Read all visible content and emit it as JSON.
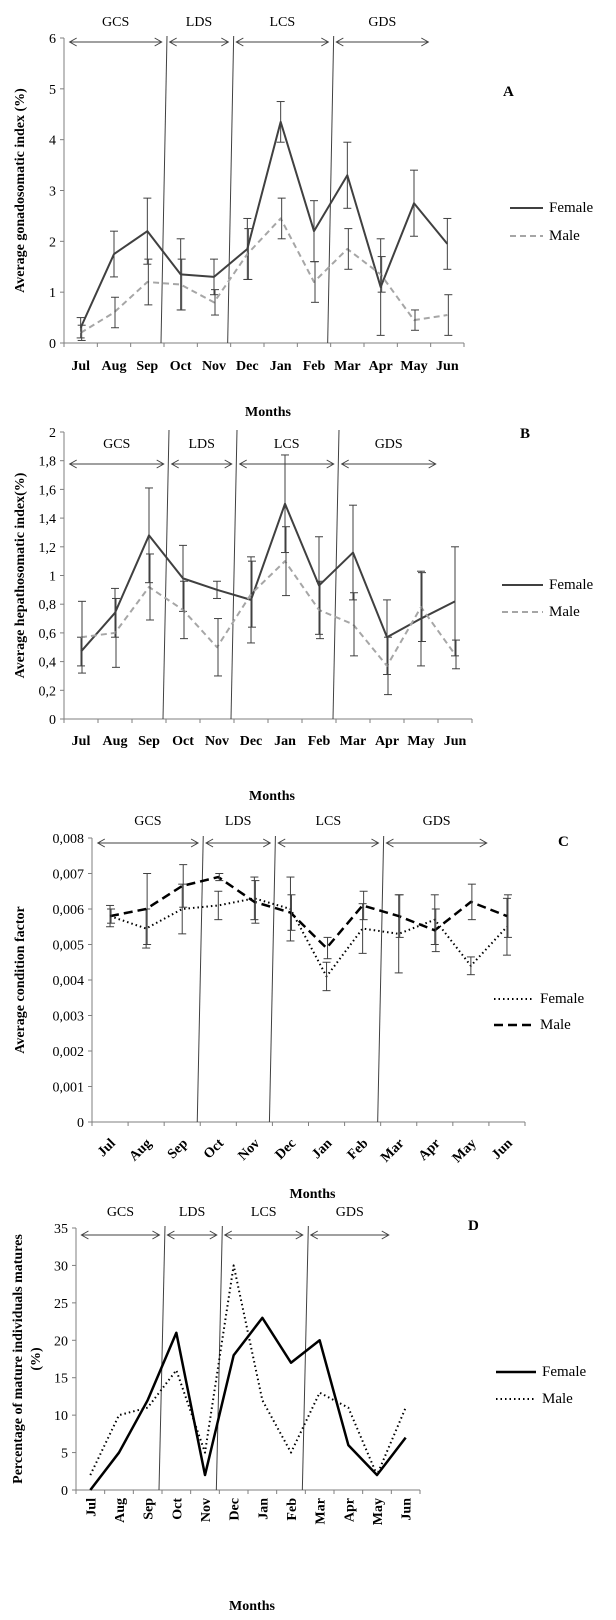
{
  "chart_data": [
    {
      "type": "line",
      "panel_label": "A",
      "categories": [
        "Jul",
        "Aug",
        "Sep",
        "Oct",
        "Nov",
        "Dec",
        "Jan",
        "Feb",
        "Mar",
        "Apr",
        "May",
        "Jun"
      ],
      "ylabel": "Average gonadosomatic index (%)",
      "xlabel": "Months",
      "ylim": [
        0,
        6
      ],
      "yticks": [
        "0",
        "1",
        "2",
        "3",
        "4",
        "5",
        "6"
      ],
      "x_tick_style": "bold-horizontal",
      "seasons": [
        {
          "label": "GCS",
          "from": 0,
          "to": 3
        },
        {
          "label": "LDS",
          "from": 3,
          "to": 5
        },
        {
          "label": "LCS",
          "from": 5,
          "to": 8
        },
        {
          "label": "GDS",
          "from": 8,
          "to": 11
        }
      ],
      "season_dividers": [
        2.5,
        4.5,
        7.5
      ],
      "legend_position": "right",
      "series": [
        {
          "name": "Female",
          "style": "solid",
          "color": "#404040",
          "values": [
            0.3,
            1.75,
            2.2,
            1.35,
            1.3,
            1.85,
            4.35,
            2.2,
            3.3,
            1.1,
            2.75,
            1.95
          ],
          "errors": [
            0.2,
            0.45,
            0.65,
            0.7,
            0.35,
            0.6,
            0.4,
            0.6,
            0.65,
            0.95,
            0.65,
            0.5
          ]
        },
        {
          "name": "Male",
          "style": "dashed",
          "color": "#a6a6a6",
          "values": [
            0.2,
            0.6,
            1.2,
            1.15,
            0.8,
            1.75,
            2.45,
            1.2,
            1.85,
            1.35,
            0.45,
            0.55
          ],
          "errors": [
            0.15,
            0.3,
            0.45,
            0.5,
            0.25,
            0.5,
            0.4,
            0.4,
            0.4,
            0.35,
            0.2,
            0.4
          ]
        }
      ]
    },
    {
      "type": "line",
      "panel_label": "B",
      "categories": [
        "Jul",
        "Aug",
        "Sep",
        "Oct",
        "Nov",
        "Dec",
        "Jan",
        "Feb",
        "Mar",
        "Apr",
        "May",
        "Jun"
      ],
      "ylabel": "Average hepathosomatic index(%)",
      "xlabel": "Months",
      "ylim": [
        0,
        2
      ],
      "yticks": [
        "0",
        "0,2",
        "0,4",
        "0,6",
        "0,8",
        "1",
        "1,2",
        "1,4",
        "1,6",
        "1,8",
        "2"
      ],
      "x_tick_style": "bold-horizontal",
      "seasons": [
        {
          "label": "GCS",
          "from": 0,
          "to": 3
        },
        {
          "label": "LDS",
          "from": 3,
          "to": 5
        },
        {
          "label": "LCS",
          "from": 5,
          "to": 8
        },
        {
          "label": "GDS",
          "from": 8,
          "to": 11
        }
      ],
      "season_dividers": [
        2.5,
        4.5,
        7.5
      ],
      "legend_position": "right",
      "series": [
        {
          "name": "Female",
          "style": "solid",
          "color": "#404040",
          "values": [
            0.47,
            0.74,
            1.28,
            0.98,
            0.9,
            0.83,
            1.5,
            0.93,
            1.16,
            0.57,
            0.7,
            0.82
          ],
          "errors": [
            0.1,
            0.17,
            0.33,
            0.23,
            0.06,
            0.3,
            0.34,
            0.34,
            0.33,
            0.26,
            0.33,
            0.38
          ]
        },
        {
          "name": "Male",
          "style": "dashed",
          "color": "#a6a6a6",
          "values": [
            0.57,
            0.6,
            0.92,
            0.76,
            0.5,
            0.87,
            1.1,
            0.76,
            0.66,
            0.37,
            0.78,
            0.45
          ],
          "errors": [
            0.25,
            0.24,
            0.23,
            0.2,
            0.2,
            0.23,
            0.24,
            0.2,
            0.22,
            0.2,
            0.24,
            0.1
          ]
        }
      ]
    },
    {
      "type": "line",
      "panel_label": "C",
      "categories": [
        "Jul",
        "Aug",
        "Sep",
        "Oct",
        "Nov",
        "Dec",
        "Jan",
        "Feb",
        "Mar",
        "Apr",
        "May",
        "Jun"
      ],
      "ylabel": "Average condition factor",
      "xlabel": "Months",
      "ylim": [
        0,
        0.008
      ],
      "yticks": [
        "0",
        "0,001",
        "0,002",
        "0,003",
        "0,004",
        "0,005",
        "0,006",
        "0,007",
        "0,008"
      ],
      "x_tick_style": "bold-rotated",
      "seasons": [
        {
          "label": "GCS",
          "from": 0,
          "to": 3
        },
        {
          "label": "LDS",
          "from": 3,
          "to": 5
        },
        {
          "label": "LCS",
          "from": 5,
          "to": 8
        },
        {
          "label": "GDS",
          "from": 8,
          "to": 11
        }
      ],
      "season_dividers": [
        2.5,
        4.5,
        7.5
      ],
      "legend_position": "right",
      "series": [
        {
          "name": "Female",
          "style": "dotted",
          "color": "#000000",
          "values": [
            0.0058,
            0.00545,
            0.006,
            0.0061,
            0.0063,
            0.006,
            0.0041,
            0.00545,
            0.0053,
            0.0057,
            0.0044,
            0.0055
          ],
          "errors": [
            0.0003,
            0.00055,
            0.0007,
            0.0004,
            0.0006,
            0.0009,
            0.0004,
            0.0007,
            0.0011,
            0.0007,
            0.00025,
            0.0008
          ]
        },
        {
          "name": "Male",
          "style": "dashed-bold",
          "color": "#000000",
          "values": [
            0.0058,
            0.006,
            0.00665,
            0.0069,
            0.0062,
            0.0059,
            0.0049,
            0.0061,
            0.0058,
            0.0054,
            0.0062,
            0.0058
          ],
          "errors": [
            0.0002,
            0.001,
            0.0006,
            0.0001,
            0.0006,
            0.0005,
            0.0003,
            0.0004,
            0.0006,
            0.0006,
            0.0005,
            0.0006
          ]
        }
      ]
    },
    {
      "type": "line",
      "panel_label": "D",
      "categories": [
        "Jul",
        "Aug",
        "Sep",
        "Oct",
        "Nov",
        "Dec",
        "Jan",
        "Feb",
        "Mar",
        "Apr",
        "May",
        "Jun"
      ],
      "ylabel": "Percentage of mature individuals matures (%)",
      "xlabel": "Months",
      "ylim": [
        0,
        35
      ],
      "yticks": [
        "0",
        "5",
        "10",
        "15",
        "20",
        "25",
        "30",
        "35"
      ],
      "x_tick_style": "bold-vertical",
      "seasons": [
        {
          "label": "GCS",
          "from": 0,
          "to": 3
        },
        {
          "label": "LDS",
          "from": 3,
          "to": 5
        },
        {
          "label": "LCS",
          "from": 5,
          "to": 8
        },
        {
          "label": "GDS",
          "from": 8,
          "to": 11
        }
      ],
      "season_dividers": [
        2.5,
        4.5,
        7.5
      ],
      "legend_position": "right",
      "series": [
        {
          "name": "Female",
          "style": "solid-bold",
          "color": "#000000",
          "values": [
            0,
            5,
            12,
            21,
            2,
            18,
            23,
            17,
            20,
            6,
            2,
            7
          ]
        },
        {
          "name": "Male",
          "style": "dotted",
          "color": "#000000",
          "values": [
            2,
            10,
            11,
            16,
            5,
            30,
            12,
            5,
            13,
            11,
            2,
            11
          ]
        }
      ]
    }
  ]
}
